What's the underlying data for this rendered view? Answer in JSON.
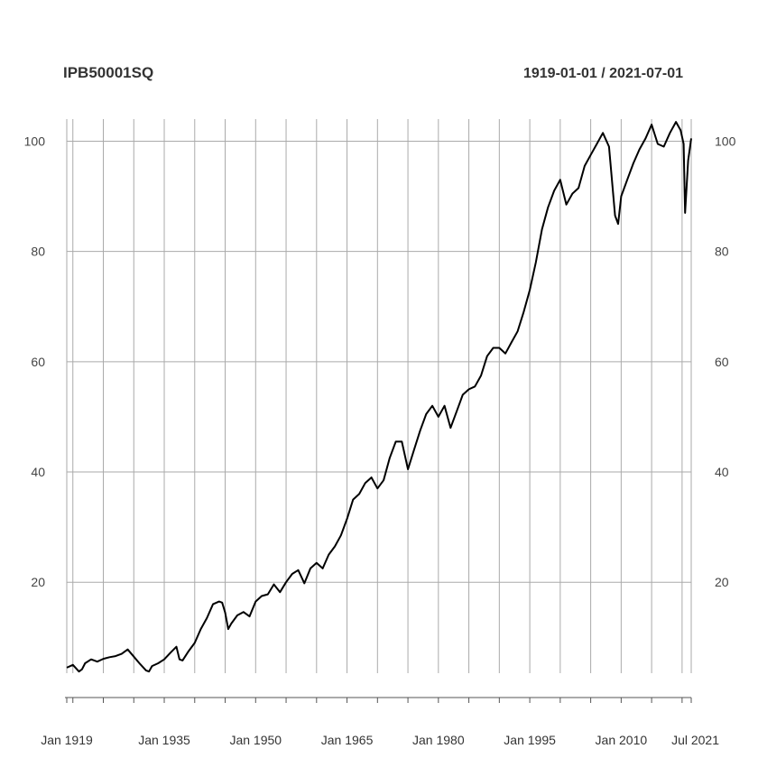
{
  "chart_data": {
    "type": "line",
    "title": "IPB50001SQ",
    "date_range": "1919-01-01 / 2021-07-01",
    "xlabel": "",
    "ylabel": "",
    "x_tick_labels": [
      "Jan 1919",
      "Jan 1935",
      "Jan 1950",
      "Jan 1965",
      "Jan 1980",
      "Jan 1995",
      "Jan 2010",
      "Jul 2021"
    ],
    "x_tick_values": [
      1919.0,
      1935.0,
      1950.0,
      1965.0,
      1980.0,
      1995.0,
      2010.0,
      2021.5
    ],
    "y_tick_labels": [
      "20",
      "40",
      "60",
      "80",
      "100"
    ],
    "y_tick_values": [
      20,
      40,
      60,
      80,
      100
    ],
    "xlim": [
      1919.0,
      2021.5
    ],
    "ylim": [
      3.5,
      104
    ],
    "grid": true,
    "line_color": "#000000",
    "x": [
      1919.0,
      1920.0,
      1921.0,
      1921.5,
      1922.0,
      1923.0,
      1924.0,
      1925.0,
      1926.0,
      1927.0,
      1928.0,
      1929.0,
      1930.0,
      1931.0,
      1932.0,
      1932.5,
      1933.0,
      1934.0,
      1935.0,
      1936.0,
      1937.0,
      1937.5,
      1938.0,
      1939.0,
      1940.0,
      1941.0,
      1942.0,
      1943.0,
      1944.0,
      1944.5,
      1945.0,
      1945.5,
      1946.0,
      1947.0,
      1948.0,
      1949.0,
      1950.0,
      1951.0,
      1952.0,
      1953.0,
      1954.0,
      1955.0,
      1956.0,
      1957.0,
      1958.0,
      1959.0,
      1960.0,
      1961.0,
      1962.0,
      1963.0,
      1964.0,
      1965.0,
      1966.0,
      1967.0,
      1968.0,
      1969.0,
      1970.0,
      1971.0,
      1972.0,
      1973.0,
      1974.0,
      1975.0,
      1976.0,
      1977.0,
      1978.0,
      1979.0,
      1980.0,
      1981.0,
      1982.0,
      1983.0,
      1984.0,
      1985.0,
      1986.0,
      1987.0,
      1988.0,
      1989.0,
      1990.0,
      1991.0,
      1992.0,
      1993.0,
      1994.0,
      1995.0,
      1996.0,
      1997.0,
      1998.0,
      1999.0,
      2000.0,
      2001.0,
      2002.0,
      2003.0,
      2004.0,
      2005.0,
      2006.0,
      2007.0,
      2008.0,
      2009.0,
      2009.5,
      2010.0,
      2011.0,
      2012.0,
      2013.0,
      2014.0,
      2015.0,
      2016.0,
      2017.0,
      2018.0,
      2019.0,
      2019.75,
      2020.25,
      2020.5,
      2021.0,
      2021.5
    ],
    "series": [
      {
        "values": [
          4.5,
          5.0,
          3.8,
          4.2,
          5.3,
          6.0,
          5.6,
          6.1,
          6.4,
          6.6,
          7.0,
          7.8,
          6.5,
          5.2,
          4.0,
          3.8,
          4.8,
          5.3,
          6.0,
          7.2,
          8.3,
          6.0,
          5.8,
          7.5,
          9.0,
          11.5,
          13.5,
          16.0,
          16.5,
          16.3,
          14.5,
          11.5,
          12.5,
          14.0,
          14.6,
          13.8,
          16.5,
          17.5,
          17.8,
          19.6,
          18.2,
          20.0,
          21.5,
          22.2,
          19.8,
          22.5,
          23.5,
          22.5,
          25.0,
          26.5,
          28.5,
          31.5,
          35.0,
          36.0,
          38.0,
          39.0,
          37.0,
          38.5,
          42.5,
          45.5,
          45.5,
          40.5,
          44.0,
          47.5,
          50.5,
          52.0,
          50.0,
          52.0,
          48.0,
          51.0,
          54.0,
          55.0,
          55.5,
          57.5,
          61.0,
          62.5,
          62.5,
          61.5,
          63.5,
          65.5,
          69.0,
          73.0,
          78.0,
          84.0,
          88.0,
          91.0,
          93.0,
          88.5,
          90.5,
          91.5,
          95.5,
          97.5,
          99.5,
          101.5,
          99.0,
          86.5,
          85.0,
          90.0,
          93.0,
          96.0,
          98.5,
          100.5,
          103.0,
          99.5,
          99.0,
          101.5,
          103.5,
          102.0,
          99.5,
          87.0,
          96.5,
          100.5
        ]
      }
    ]
  }
}
